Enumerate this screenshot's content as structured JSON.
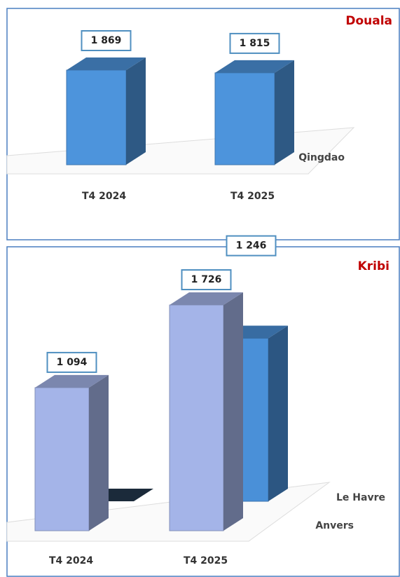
{
  "chart_data": [
    {
      "type": "bar3d",
      "title": "Douala",
      "categories": [
        "T4 2024",
        "T4 2025"
      ],
      "series": [
        {
          "name": "Qingdao",
          "color": "#4d94dc",
          "values": [
            1869,
            1815
          ],
          "value_labels": [
            "1 869",
            "1 815"
          ]
        }
      ]
    },
    {
      "type": "bar3d",
      "title": "Kribi",
      "categories": [
        "T4 2024",
        "T4 2025"
      ],
      "series": [
        {
          "name": "Le Havre",
          "color": "#a4b4e8",
          "values": [
            1094,
            1726
          ],
          "value_labels": [
            "1 094",
            "1 726"
          ]
        },
        {
          "name": "Anvers",
          "color": "#4a90d8",
          "values": [
            0,
            1246
          ],
          "value_labels": [
            null,
            "1 246"
          ]
        }
      ]
    }
  ]
}
